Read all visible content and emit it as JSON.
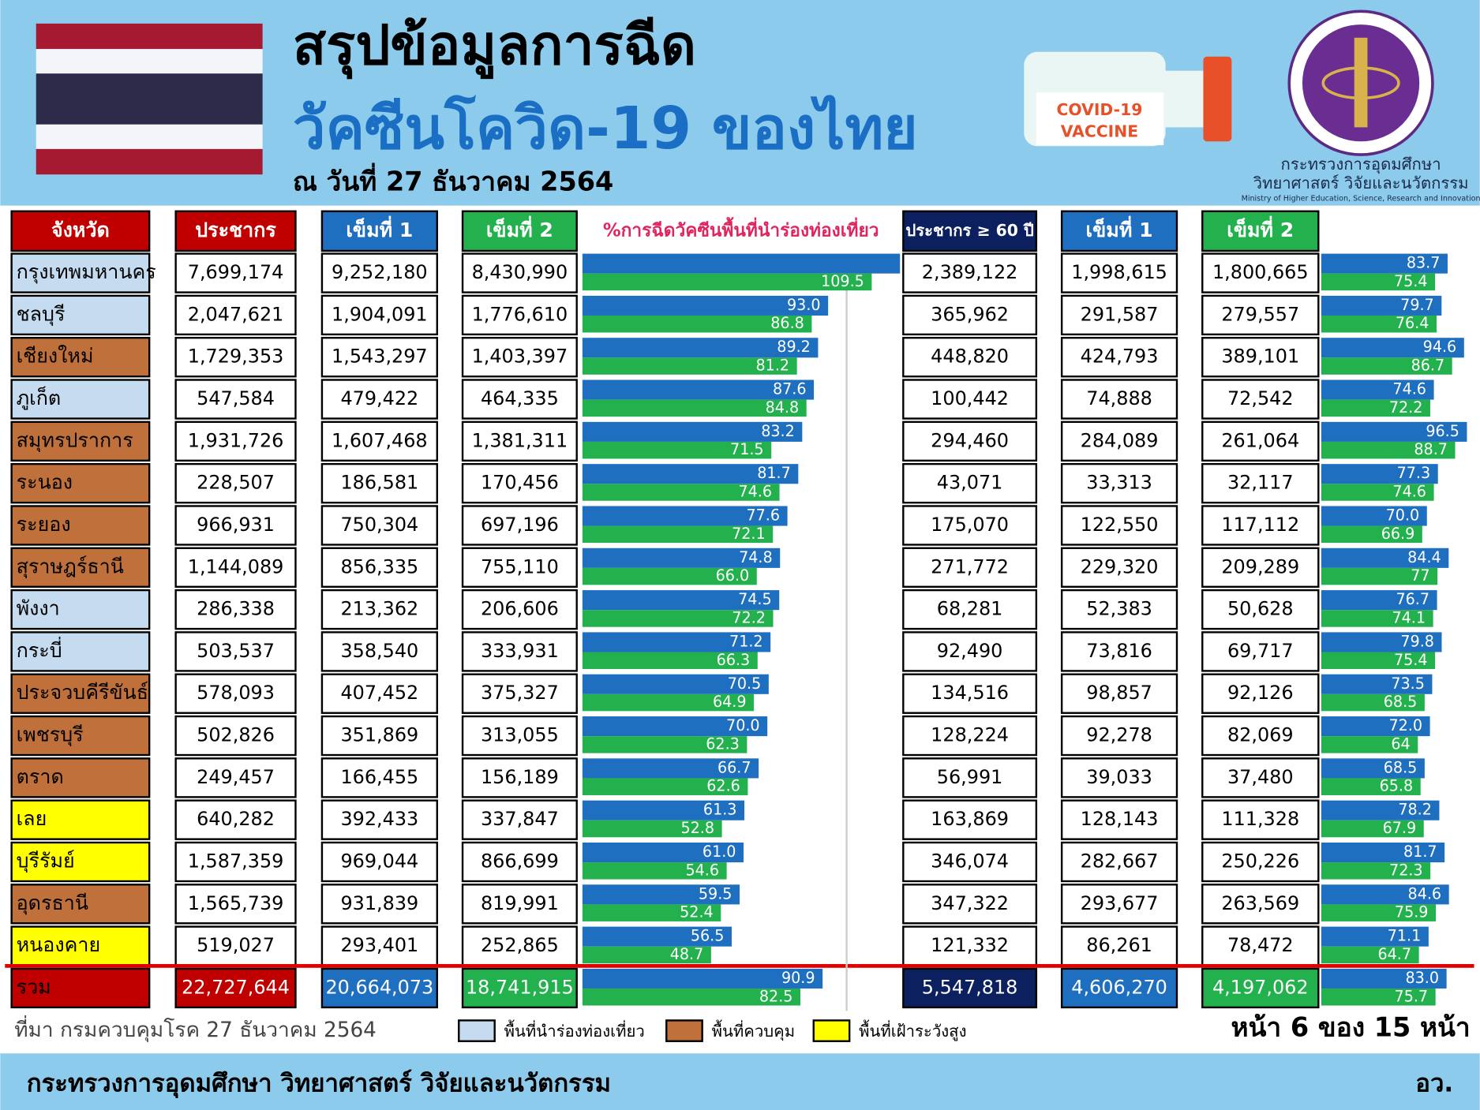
{
  "header": {
    "title_line1": "สรุปข้อมูลการฉีด",
    "title_line2": "วัคซีนโควิด-19 ของไทย",
    "date": "ณ วันที่ 27 ธันวาคม 2564",
    "vaccine_label": [
      "COVID-19",
      "VACCINE"
    ],
    "ministry_line1": "กระทรวงการอุดมศึกษา",
    "ministry_line2": "วิทยาศาสตร์ วิจัยและนวัตกรรม",
    "ministry_en": "Ministry of Higher Education, Science, Research and Innovation"
  },
  "table": {
    "headers": [
      "จังหวัด",
      "ประชากร",
      "เข็มที่ 1",
      "เข็มที่ 2",
      "ประชากร ≥ 60 ปี",
      "เข็มที่ 1",
      "เข็มที่ 2"
    ],
    "row_colors": [
      "#c5dcf0",
      "#c5dcf0",
      "#c0703a",
      "#c5dcf0",
      "#c0703a",
      "#c0703a",
      "#c0703a",
      "#c0703a",
      "#c5dcf0",
      "#c5dcf0",
      "#c0703a",
      "#c0703a",
      "#c0703a",
      "#ffff00",
      "#ffff00",
      "#c0703a",
      "#ffff00",
      "#c00000"
    ],
    "rows": [
      [
        "กรุงเทพมหานคร",
        "7,699,174",
        "9,252,180",
        "8,430,990",
        "2,389,122",
        "1,998,615",
        "1,800,665"
      ],
      [
        "ชลบุรี",
        "2,047,621",
        "1,904,091",
        "1,776,610",
        "365,962",
        "291,587",
        "279,557"
      ],
      [
        "เชียงใหม่",
        "1,729,353",
        "1,543,297",
        "1,403,397",
        "448,820",
        "424,793",
        "389,101"
      ],
      [
        "ภูเก็ต",
        "547,584",
        "479,422",
        "464,335",
        "100,442",
        "74,888",
        "72,542"
      ],
      [
        "สมุทรปราการ",
        "1,931,726",
        "1,607,468",
        "1,381,311",
        "294,460",
        "284,089",
        "261,064"
      ],
      [
        "ระนอง",
        "228,507",
        "186,581",
        "170,456",
        "43,071",
        "33,313",
        "32,117"
      ],
      [
        "ระยอง",
        "966,931",
        "750,304",
        "697,196",
        "175,070",
        "122,550",
        "117,112"
      ],
      [
        "สุราษฎร์ธานี",
        "1,144,089",
        "856,335",
        "755,110",
        "271,772",
        "229,320",
        "209,289"
      ],
      [
        "พังงา",
        "286,338",
        "213,362",
        "206,606",
        "68,281",
        "52,383",
        "50,628"
      ],
      [
        "กระบี่",
        "503,537",
        "358,540",
        "333,931",
        "92,490",
        "73,816",
        "69,717"
      ],
      [
        "ประจวบคีรีขันธ์",
        "578,093",
        "407,452",
        "375,327",
        "134,516",
        "98,857",
        "92,126"
      ],
      [
        "เพชรบุรี",
        "502,826",
        "351,869",
        "313,055",
        "128,224",
        "92,278",
        "82,069"
      ],
      [
        "ตราด",
        "249,457",
        "166,455",
        "156,189",
        "56,991",
        "39,033",
        "37,480"
      ],
      [
        "เลย",
        "640,282",
        "392,433",
        "337,847",
        "163,869",
        "128,143",
        "111,328"
      ],
      [
        "บุรีรัมย์",
        "1,587,359",
        "969,044",
        "866,699",
        "346,074",
        "282,667",
        "250,226"
      ],
      [
        "อุดรธานี",
        "1,565,739",
        "931,839",
        "819,991",
        "347,322",
        "293,677",
        "263,569"
      ],
      [
        "หนองคาย",
        "519,027",
        "293,401",
        "252,865",
        "121,332",
        "86,261",
        "78,472"
      ],
      [
        "รวม",
        "22,727,644",
        "20,664,073",
        "18,741,915",
        "5,547,818",
        "4,606,270",
        "4,197,062"
      ]
    ]
  },
  "chart_data": [
    {
      "type": "bar",
      "title": "%การฉีดวัคซีนพื้นที่นำร่องท่องเที่ยว",
      "xlim": [
        0,
        110
      ],
      "reference_x": 100,
      "series": [
        {
          "color": "#1f6fc0",
          "values": [
            120.2,
            93.0,
            89.2,
            87.6,
            83.2,
            81.7,
            77.6,
            74.8,
            74.5,
            71.2,
            70.5,
            70.0,
            66.7,
            61.3,
            61.0,
            59.5,
            56.5,
            90.9
          ],
          "value_labels": [
            null,
            "93.0",
            "89.2",
            "87.6",
            "83.2",
            "81.7",
            "77.6",
            "74.8",
            "74.5",
            "71.2",
            "70.5",
            "70.0",
            "66.7",
            "61.3",
            "61.0",
            "59.5",
            "56.5",
            "90.9"
          ]
        },
        {
          "color": "#22b14c",
          "values": [
            109.5,
            86.8,
            81.2,
            84.8,
            71.5,
            74.6,
            72.1,
            66.0,
            72.2,
            66.3,
            64.9,
            62.3,
            62.6,
            52.8,
            54.6,
            52.4,
            48.7,
            82.5
          ],
          "value_labels": [
            "109.5",
            "86.8",
            "81.2",
            "84.8",
            "71.5",
            "74.6",
            "72.1",
            "66.0",
            "72.2",
            "66.3",
            "64.9",
            "62.3",
            "62.6",
            "52.8",
            "54.6",
            "52.4",
            "48.7",
            "82.5"
          ]
        }
      ]
    },
    {
      "type": "bar",
      "xlim": [
        0,
        100
      ],
      "series": [
        {
          "color": "#1f6fc0",
          "values": [
            83.7,
            79.7,
            94.6,
            74.6,
            96.5,
            77.3,
            70.0,
            84.4,
            76.7,
            79.8,
            73.5,
            72.0,
            68.5,
            78.2,
            81.7,
            84.6,
            71.1,
            83.0
          ],
          "value_labels": [
            "83.7",
            "79.7",
            "94.6",
            "74.6",
            "96.5",
            "77.3",
            "70.0",
            "84.4",
            "76.7",
            "79.8",
            "73.5",
            "72.0",
            "68.5",
            "78.2",
            "81.7",
            "84.6",
            "71.1",
            "83.0"
          ]
        },
        {
          "color": "#22b14c",
          "values": [
            75.4,
            76.4,
            86.7,
            72.2,
            88.7,
            74.6,
            66.9,
            77,
            74.1,
            75.4,
            68.5,
            64,
            65.8,
            67.9,
            72.3,
            75.9,
            64.7,
            75.7
          ],
          "value_labels": [
            "75.4",
            "76.4",
            "86.7",
            "72.2",
            "88.7",
            "74.6",
            "66.9",
            "77",
            "74.1",
            "75.4",
            "68.5",
            "64",
            "65.8",
            "67.9",
            "72.3",
            "75.9",
            "64.7",
            "75.7"
          ]
        }
      ]
    }
  ],
  "legend": [
    {
      "label": "พื้นที่นำร่องท่องเที่ยว",
      "color": "#c5dcf0"
    },
    {
      "label": "พื้นที่ควบคุม",
      "color": "#c0703a"
    },
    {
      "label": "พื้นที่เฝ้าระวังสูง",
      "color": "#ffff00"
    }
  ],
  "source": "ที่มา กรมควบคุมโรค 27 ธันวาคม 2564",
  "page": "หน้า 6 ของ 15 หน้า",
  "footer": {
    "org": "กระทรวงการอุดมศึกษา วิทยาศาสตร์ วิจัยและนวัตกรรม",
    "abbr": "อว."
  }
}
